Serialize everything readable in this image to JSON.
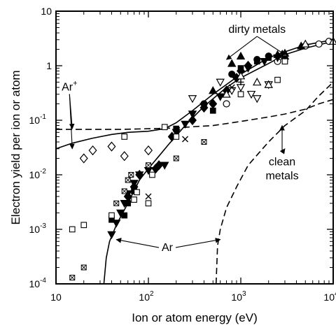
{
  "chart_data": {
    "type": "scatter",
    "xlabel": "Ion or atom energy (eV)",
    "ylabel": "Electron yield per ion or atom",
    "x_scale": "log",
    "y_scale": "log",
    "xlim": [
      10,
      10000
    ],
    "ylim": [
      0.0001,
      10
    ],
    "x_ticks": [
      {
        "value": 10,
        "base": "10",
        "exp": ""
      },
      {
        "value": 100,
        "base": "10",
        "exp": "2"
      },
      {
        "value": 1000,
        "base": "10",
        "exp": "3"
      },
      {
        "value": 10000,
        "base": "10",
        "exp": "4"
      }
    ],
    "y_ticks": [
      {
        "value": 0.0001,
        "base": "10",
        "exp": "-4"
      },
      {
        "value": 0.001,
        "base": "10",
        "exp": "-3"
      },
      {
        "value": 0.01,
        "base": "10",
        "exp": "-2"
      },
      {
        "value": 0.1,
        "base": "10",
        "exp": "-1"
      },
      {
        "value": 1,
        "base": "1",
        "exp": ""
      },
      {
        "value": 10,
        "base": "10",
        "exp": ""
      }
    ],
    "grid": false,
    "curves": [
      {
        "name": "Ar+ dirty metals",
        "style": "solid",
        "points": [
          [
            10,
            0.03
          ],
          [
            15,
            0.038
          ],
          [
            25,
            0.047
          ],
          [
            40,
            0.055
          ],
          [
            60,
            0.06
          ],
          [
            100,
            0.063
          ],
          [
            150,
            0.07
          ],
          [
            200,
            0.09
          ],
          [
            300,
            0.15
          ],
          [
            500,
            0.3
          ],
          [
            1000,
            0.7
          ],
          [
            2000,
            1.4
          ],
          [
            3000,
            1.8
          ],
          [
            5000,
            2.4
          ],
          [
            10000,
            3.0
          ]
        ]
      },
      {
        "name": "Ar dirty metals",
        "style": "solid",
        "points": [
          [
            33,
            0.0001
          ],
          [
            35,
            0.0003
          ],
          [
            38,
            0.0006
          ],
          [
            45,
            0.0012
          ],
          [
            60,
            0.003
          ],
          [
            80,
            0.008
          ],
          [
            100,
            0.013
          ],
          [
            130,
            0.022
          ],
          [
            170,
            0.038
          ],
          [
            250,
            0.08
          ],
          [
            400,
            0.18
          ],
          [
            700,
            0.4
          ],
          [
            1000,
            0.6
          ],
          [
            2000,
            1.1
          ],
          [
            3000,
            1.6
          ],
          [
            5000,
            2.1
          ],
          [
            10000,
            2.8
          ]
        ]
      },
      {
        "name": "Ar+ clean metals",
        "style": "dashed",
        "points": [
          [
            10,
            0.068
          ],
          [
            50,
            0.068
          ],
          [
            100,
            0.07
          ],
          [
            200,
            0.072
          ],
          [
            300,
            0.076
          ],
          [
            500,
            0.08
          ],
          [
            1000,
            0.095
          ],
          [
            2000,
            0.115
          ],
          [
            3000,
            0.13
          ],
          [
            5000,
            0.16
          ],
          [
            7000,
            0.2
          ],
          [
            10000,
            0.24
          ]
        ]
      },
      {
        "name": "Ar clean metals",
        "style": "dashed",
        "points": [
          [
            540,
            0.0001
          ],
          [
            560,
            0.0005
          ],
          [
            600,
            0.001
          ],
          [
            700,
            0.0025
          ],
          [
            900,
            0.006
          ],
          [
            1200,
            0.015
          ],
          [
            2000,
            0.04
          ],
          [
            3000,
            0.08
          ],
          [
            5000,
            0.15
          ],
          [
            7000,
            0.28
          ],
          [
            10000,
            0.5
          ]
        ]
      }
    ],
    "points": [
      {
        "marker": "open-circle",
        "points": [
          [
            7000,
            2.5
          ],
          [
            9000,
            2.8
          ],
          [
            5000,
            2.3
          ],
          [
            2500,
            1.2
          ],
          [
            700,
            0.2
          ]
        ]
      },
      {
        "marker": "filled-circle",
        "points": [
          [
            1500,
            1.3
          ],
          [
            2000,
            1.5
          ],
          [
            800,
            0.7
          ],
          [
            400,
            0.2
          ]
        ]
      },
      {
        "marker": "filled-diamond",
        "points": [
          [
            60,
            0.004
          ],
          [
            70,
            0.006
          ],
          [
            80,
            0.01
          ],
          [
            120,
            0.013
          ],
          [
            130,
            0.015
          ],
          [
            180,
            0.05
          ],
          [
            300,
            0.1
          ],
          [
            400,
            0.17
          ],
          [
            500,
            0.2
          ],
          [
            700,
            0.35
          ],
          [
            900,
            0.6
          ],
          [
            1000,
            0.8
          ],
          [
            1200,
            1.0
          ]
        ]
      },
      {
        "marker": "open-diamond",
        "points": [
          [
            20,
            0.02
          ],
          [
            25,
            0.028
          ],
          [
            40,
            0.033
          ],
          [
            55,
            0.022
          ],
          [
            100,
            0.028
          ]
        ]
      },
      {
        "marker": "filled-triangle-down",
        "points": [
          [
            40,
            0.0008
          ],
          [
            45,
            0.0013
          ],
          [
            50,
            0.002
          ],
          [
            55,
            0.003
          ],
          [
            60,
            0.0045
          ],
          [
            70,
            0.007
          ],
          [
            80,
            0.01
          ],
          [
            100,
            0.012
          ],
          [
            150,
            0.015
          ],
          [
            200,
            0.06
          ],
          [
            250,
            0.085
          ],
          [
            300,
            0.13
          ],
          [
            400,
            0.18
          ],
          [
            600,
            0.27
          ],
          [
            1200,
            0.9
          ],
          [
            1800,
            1.2
          ],
          [
            2500,
            1.4
          ]
        ]
      },
      {
        "marker": "open-triangle-down",
        "points": [
          [
            300,
            0.25
          ],
          [
            600,
            0.5
          ],
          [
            800,
            0.35
          ],
          [
            1000,
            0.4
          ],
          [
            1300,
            0.3
          ],
          [
            1500,
            0.25
          ],
          [
            2000,
            0.45
          ]
        ]
      },
      {
        "marker": "filled-triangle-up",
        "points": [
          [
            500,
            0.35
          ],
          [
            800,
            1.1
          ],
          [
            1000,
            1.5
          ],
          [
            2500,
            1.6
          ],
          [
            3000,
            1.7
          ],
          [
            4500,
            2.3
          ]
        ]
      },
      {
        "marker": "open-triangle-up",
        "points": [
          [
            700,
            0.3
          ],
          [
            1000,
            0.65
          ],
          [
            1500,
            0.5
          ],
          [
            2000,
            0.45
          ],
          [
            3000,
            1.5
          ],
          [
            5000,
            2.5
          ],
          [
            10000,
            2.8
          ]
        ]
      },
      {
        "marker": "filled-square",
        "points": [
          [
            40,
            0.0015
          ],
          [
            55,
            0.0018
          ],
          [
            60,
            0.003
          ],
          [
            70,
            0.005
          ],
          [
            200,
            0.07
          ],
          [
            500,
            0.15
          ],
          [
            1000,
            0.9
          ],
          [
            1500,
            1.2
          ],
          [
            2000,
            1.4
          ],
          [
            3000,
            1.3
          ]
        ]
      },
      {
        "marker": "open-square",
        "points": [
          [
            15,
            0.001
          ],
          [
            20,
            0.0012
          ],
          [
            40,
            0.0018
          ],
          [
            55,
            0.05
          ],
          [
            70,
            0.0035
          ],
          [
            75,
            0.0048
          ],
          [
            100,
            0.003
          ],
          [
            110,
            0.01
          ],
          [
            150,
            0.075
          ],
          [
            200,
            0.05
          ],
          [
            1000,
            0.3
          ],
          [
            2500,
            0.55
          ],
          [
            3000,
            1.2
          ]
        ]
      },
      {
        "marker": "crossed-square",
        "points": [
          [
            15,
            0.00013
          ],
          [
            20,
            0.0002
          ],
          [
            45,
            0.003
          ],
          [
            55,
            0.005
          ],
          [
            60,
            0.008
          ],
          [
            65,
            0.01
          ],
          [
            100,
            0.015
          ],
          [
            200,
            0.02
          ],
          [
            400,
            0.04
          ]
        ]
      },
      {
        "marker": "x",
        "points": [
          [
            100,
            0.004
          ],
          [
            250,
            0.045
          ],
          [
            800,
            0.4
          ]
        ]
      },
      {
        "marker": "plus",
        "points": [
          [
            300,
            0.1
          ],
          [
            1000,
            0.5
          ],
          [
            3000,
            1.5
          ]
        ]
      }
    ],
    "annotations": [
      {
        "text": "dirty metals",
        "at": [
          1500,
          4
        ],
        "arrows_to": [
          [
            700,
            1.3
          ],
          [
            3000,
            1.6
          ]
        ]
      },
      {
        "text": "Ar",
        "sup": "+",
        "at": [
          14,
          0.35
        ],
        "arrows_to": [
          [
            15,
            0.03
          ],
          [
            15,
            0.07
          ]
        ]
      },
      {
        "text": "clean metals",
        "at": [
          2800,
          0.015
        ],
        "arrows_to": [
          [
            2800,
            0.08
          ],
          [
            3000,
            0.03
          ]
        ]
      },
      {
        "text": "Ar",
        "at": [
          160,
          0.0004
        ],
        "arrows_to": [
          [
            45,
            0.00065
          ],
          [
            600,
            0.00065
          ]
        ]
      }
    ]
  }
}
